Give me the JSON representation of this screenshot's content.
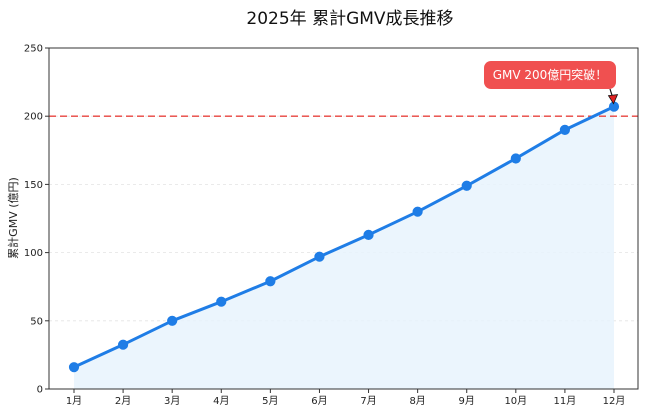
{
  "chart_data": {
    "type": "line",
    "title": "2025年 累計GMV成長推移",
    "xlabel": "",
    "ylabel": "累計GMV (億円)",
    "categories": [
      "1月",
      "2月",
      "3月",
      "4月",
      "5月",
      "6月",
      "7月",
      "8月",
      "9月",
      "10月",
      "11月",
      "12月"
    ],
    "series": [
      {
        "values": [
          16,
          32.5,
          50,
          64,
          79,
          97,
          113,
          130,
          149,
          169,
          190,
          207
        ]
      }
    ],
    "ylim": [
      0,
      250
    ],
    "yticks": [
      0,
      50,
      100,
      150,
      200,
      250
    ],
    "grid": true,
    "threshold": {
      "value": 200,
      "color": "#e8433e",
      "style": "dashed"
    },
    "annotation": {
      "text": "GMV 200億円突破！",
      "target_category": "12月",
      "target_value": 207
    },
    "colors": {
      "line": "#1f7de6",
      "fill": "#e8f3fd",
      "annotation_bg": "#f05050",
      "arrow": "#e02020"
    }
  }
}
